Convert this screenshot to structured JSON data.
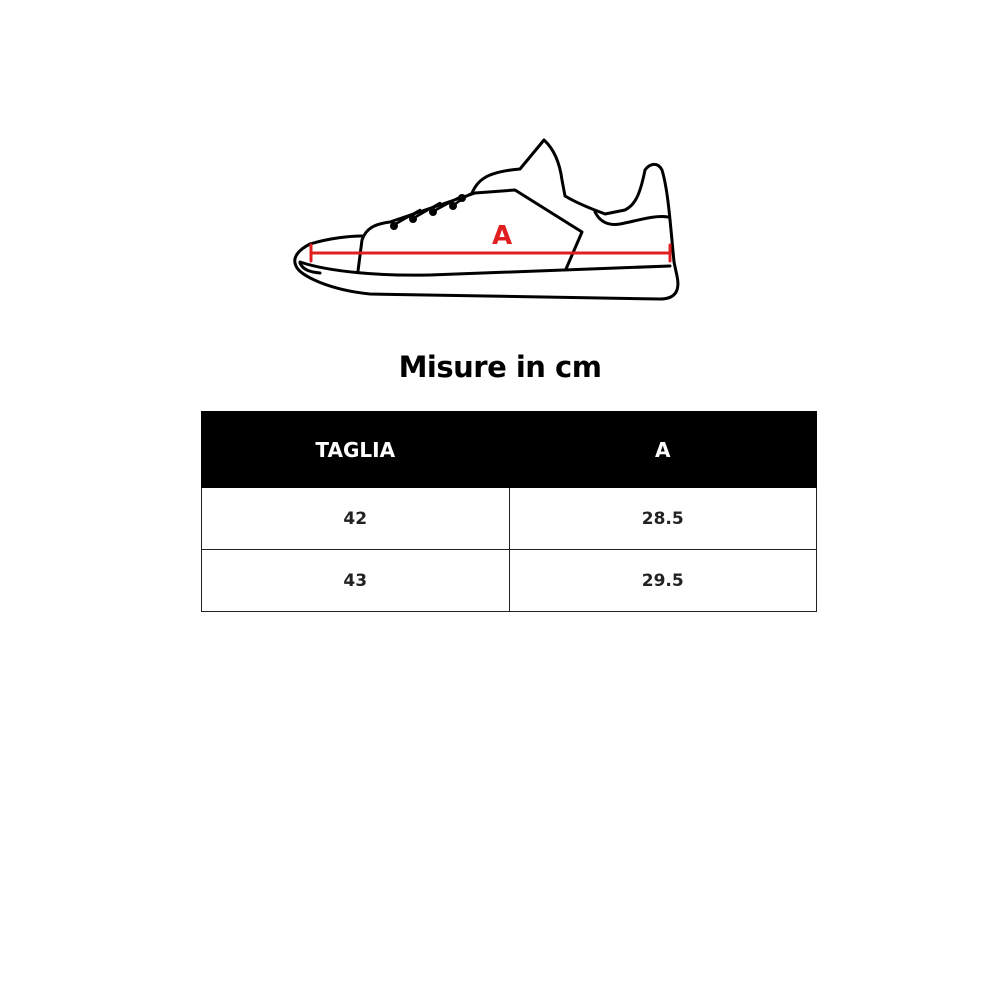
{
  "diagram": {
    "measure_label": "A",
    "measure_color": "#e02020",
    "icon": "sneaker-outline"
  },
  "title": "Misure in cm",
  "table": {
    "headers": [
      "TAGLIA",
      "A"
    ],
    "rows": [
      [
        "42",
        "28.5"
      ],
      [
        "43",
        "29.5"
      ]
    ]
  }
}
